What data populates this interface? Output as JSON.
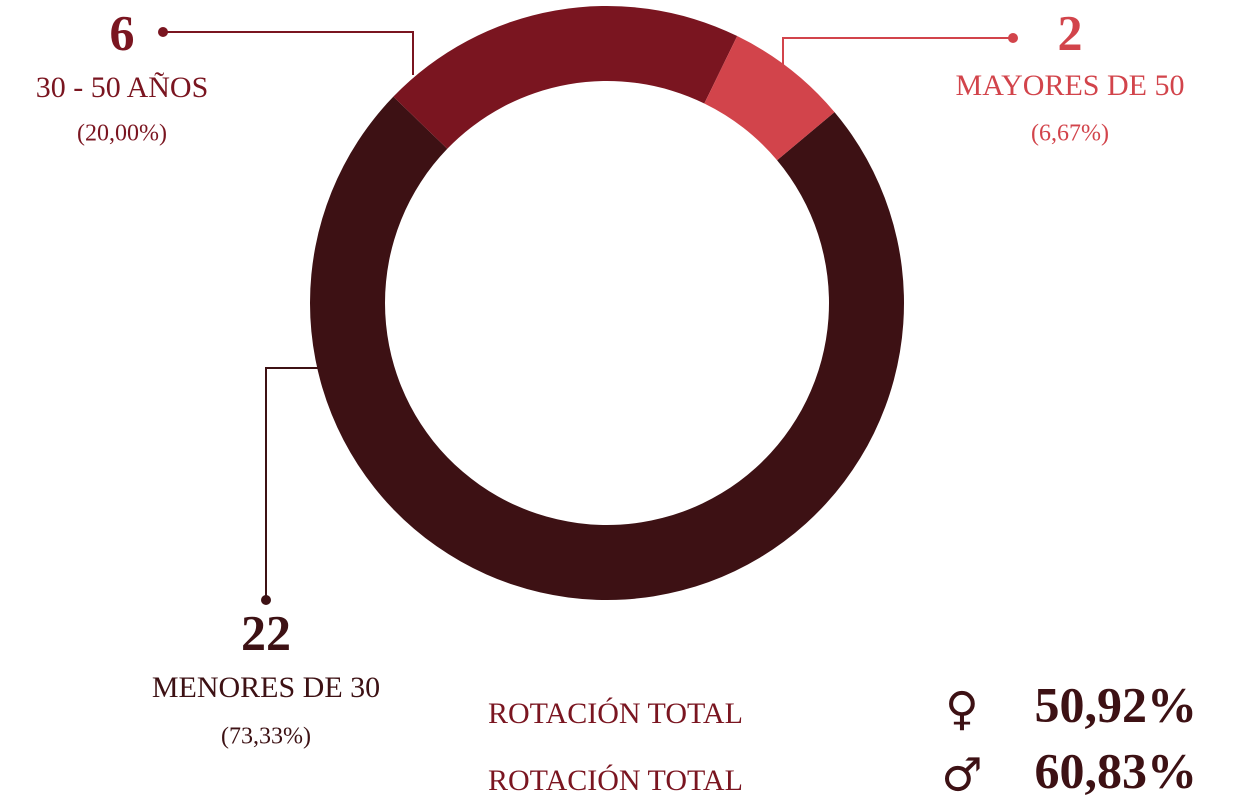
{
  "chart_data": {
    "type": "donut",
    "segments": [
      {
        "name": "MENORES DE 30",
        "value": 22,
        "share_label": "(73,33%)",
        "color": "#3d1114"
      },
      {
        "name": "30 - 50 AÑOS",
        "value": 6,
        "share_label": "(20,00%)",
        "color": "#7a1520"
      },
      {
        "name": "MAYORES DE 50",
        "value": 2,
        "share_label": "(6,67%)",
        "color": "#d2444b"
      }
    ]
  },
  "footer": [
    {
      "label": "ROTACIÓN TOTAL",
      "symbol": "♀",
      "value": "50,92%"
    },
    {
      "label": "ROTACIÓN TOTAL",
      "symbol": "♂",
      "value": "60,83%"
    }
  ]
}
